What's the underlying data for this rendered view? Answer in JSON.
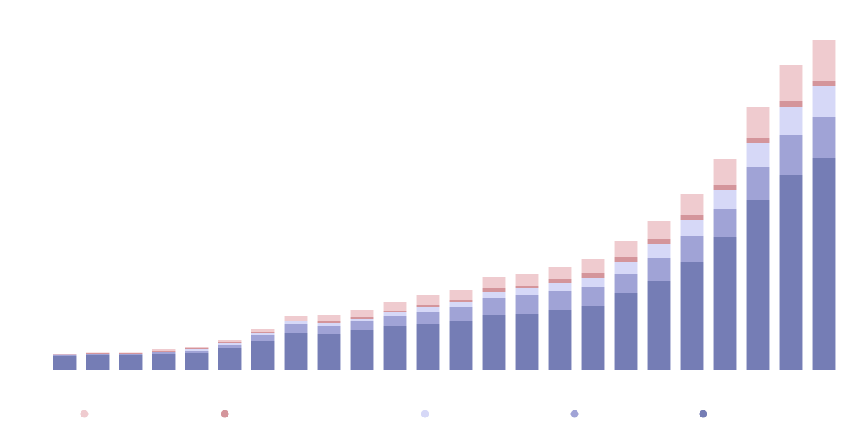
{
  "chart_data": {
    "type": "bar",
    "stacked": true,
    "categories": [
      null,
      null,
      null,
      null,
      null,
      null,
      null,
      null,
      null,
      null,
      null,
      null,
      null,
      null,
      null,
      null,
      null,
      null,
      null,
      null,
      null,
      null,
      null,
      null
    ],
    "series": [
      {
        "color": "#757db5",
        "values": [
          20,
          21,
          21,
          23,
          24,
          31,
          41,
          52,
          51,
          57,
          62,
          65,
          70,
          78,
          80,
          85,
          91,
          109,
          126,
          154,
          189,
          242,
          277,
          302
        ]
      },
      {
        "color": "#a0a3d6",
        "values": [
          1,
          1,
          1,
          2,
          3,
          5,
          8,
          13,
          12,
          12,
          14,
          17,
          20,
          24,
          26,
          27,
          27,
          28,
          33,
          36,
          40,
          47,
          57,
          58
        ]
      },
      {
        "color": "#d6d8f7",
        "values": [
          0.5,
          1,
          1,
          1,
          2,
          2,
          3,
          4,
          4,
          4,
          6,
          7,
          7,
          9,
          10,
          11,
          13,
          16,
          20,
          24,
          27,
          34,
          41,
          44
        ]
      },
      {
        "color": "#d4959b",
        "values": [
          0.5,
          1,
          1,
          1,
          2,
          1,
          2,
          1,
          2,
          2,
          2,
          3,
          3,
          5,
          4,
          6,
          7,
          8,
          7,
          7,
          8,
          8,
          8,
          8
        ]
      },
      {
        "color": "#efcbcf",
        "values": [
          1,
          0.5,
          0.5,
          2,
          1,
          3,
          4,
          7,
          9,
          10,
          12,
          14,
          14,
          16,
          17,
          18,
          20,
          22,
          26,
          29,
          36,
          43,
          52,
          58
        ]
      }
    ],
    "ylim": [
      0,
      490
    ]
  }
}
